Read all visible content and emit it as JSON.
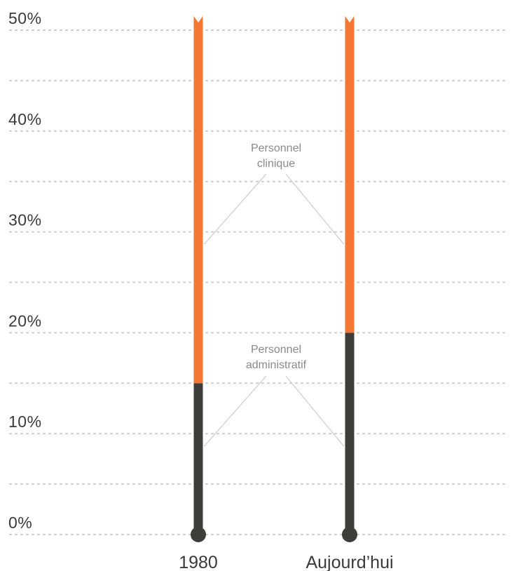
{
  "colors": {
    "clinical": "#f47735",
    "administrative": "#3d3d3b",
    "grid": "#c9c9c9",
    "text": "#3a3a3a",
    "annotation": "#8a8a8a"
  },
  "chart_data": {
    "type": "bar",
    "stacked": true,
    "categories": [
      "1980",
      "Aujourd’hui"
    ],
    "series": [
      {
        "name": "Personnel administratif",
        "values": [
          15,
          20
        ]
      },
      {
        "name": "Personnel clinique",
        "values": [
          35,
          30
        ]
      }
    ],
    "ylim": [
      0,
      50
    ],
    "ytick_values": [
      0,
      10,
      20,
      30,
      40,
      50
    ],
    "ytick_labels": [
      "0%",
      "10%",
      "20%",
      "30%",
      "40%",
      "50%"
    ],
    "grid": true,
    "annotations": [
      {
        "lines": [
          "Personnel",
          "clinique"
        ],
        "series": "Personnel clinique"
      },
      {
        "lines": [
          "Personnel",
          "administratif"
        ],
        "series": "Personnel administratif"
      }
    ]
  }
}
